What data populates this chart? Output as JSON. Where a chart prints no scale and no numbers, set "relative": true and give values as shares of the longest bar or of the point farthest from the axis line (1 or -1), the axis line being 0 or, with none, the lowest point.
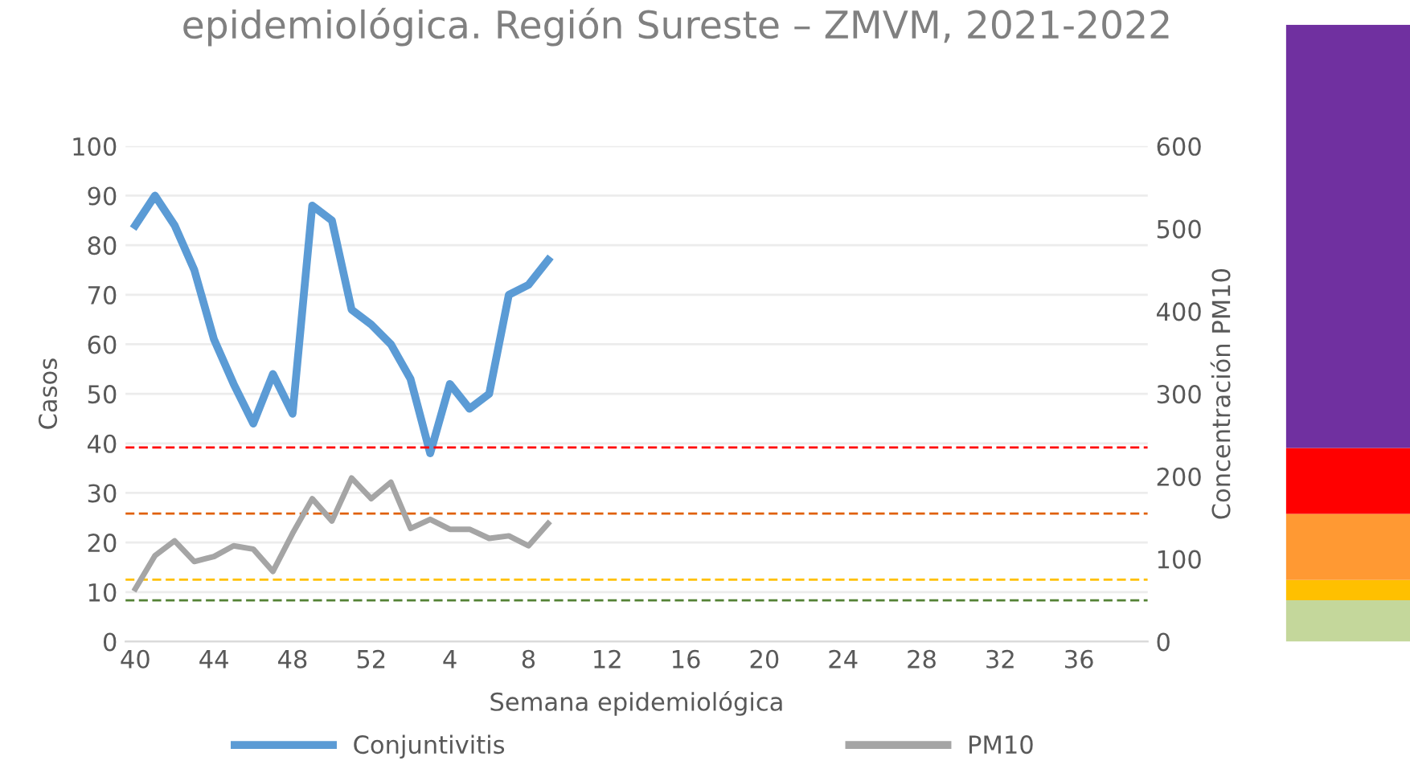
{
  "chart_data": [
    {
      "type": "line",
      "title": "epidemiológica. Región Sureste – ZMVM, 2021-2022",
      "xlabel": "Semana epidemiológica",
      "ylabel": "Casos",
      "y2label": "Concentración PM10",
      "categories": [
        "40",
        null,
        null,
        null,
        "44",
        null,
        null,
        null,
        "48",
        null,
        null,
        null,
        "52",
        null,
        null,
        null,
        "4",
        null,
        null,
        null,
        "8",
        null,
        null,
        null,
        "12",
        null,
        null,
        null,
        "16",
        null,
        null,
        null,
        "20",
        null,
        null,
        null,
        "24",
        null,
        null,
        null,
        "28",
        null,
        null,
        null,
        "32",
        null,
        null,
        null,
        "36",
        null,
        null,
        null
      ],
      "series": [
        {
          "name": "Conjuntivitis",
          "color": "#5b9bd5",
          "values": [
            84,
            90,
            84,
            75,
            61,
            52,
            44,
            54,
            46,
            88,
            85,
            67,
            64,
            60,
            53,
            38,
            52,
            47,
            50,
            70,
            72,
            77,
            null,
            null,
            null,
            null,
            null,
            null,
            null,
            null,
            null,
            null,
            null,
            null,
            null,
            null,
            null,
            null,
            null,
            null,
            null,
            null,
            null,
            null,
            null,
            null,
            null,
            null,
            null,
            null,
            null,
            null
          ]
        },
        {
          "name": "PM10",
          "color": "#a5a5a5",
          "axis": "y2",
          "values": [
            64,
            104,
            122,
            97,
            103,
            116,
            112,
            85,
            131,
            173,
            146,
            198,
            173,
            193,
            137,
            148,
            136,
            136,
            125,
            128,
            116,
            143,
            null,
            null,
            null,
            null,
            null,
            null,
            null,
            null,
            null,
            null,
            null,
            null,
            null,
            null,
            null,
            null,
            null,
            null,
            null,
            null,
            null,
            null,
            null,
            null,
            null,
            null,
            null,
            null,
            null,
            null
          ]
        }
      ],
      "ylim": [
        0,
        100
      ],
      "yticks": [
        0,
        10,
        20,
        30,
        40,
        50,
        60,
        70,
        80,
        90,
        100
      ],
      "y2lim": [
        0,
        600
      ],
      "y2ticks": [
        0,
        100,
        200,
        300,
        400,
        500,
        600
      ],
      "ref_lines": [
        {
          "axis": "y2",
          "value": 235,
          "color": "#ff0000",
          "line_style": "dashed"
        },
        {
          "axis": "y2",
          "value": 155,
          "color": "#e0600a",
          "line_style": "dashed"
        },
        {
          "axis": "y2",
          "value": 75,
          "color": "#ffc000",
          "line_style": "dashed"
        },
        {
          "axis": "y2",
          "value": 50,
          "color": "#548235",
          "line_style": "dashed"
        }
      ],
      "grid": "y",
      "legend": "bottom",
      "marker": "none",
      "line_style": "solid"
    },
    {
      "type": "bar",
      "stacked": true,
      "relative": true,
      "categories": [
        null
      ],
      "series": [
        {
          "color": "#c4d79b",
          "values": [
            0.067
          ]
        },
        {
          "color": "#ffc000",
          "values": [
            0.033
          ]
        },
        {
          "color": "#ff9933",
          "values": [
            0.107
          ]
        },
        {
          "color": "#ff0000",
          "values": [
            0.107
          ]
        },
        {
          "color": "#7030a0",
          "values": [
            0.686
          ]
        }
      ]
    }
  ]
}
